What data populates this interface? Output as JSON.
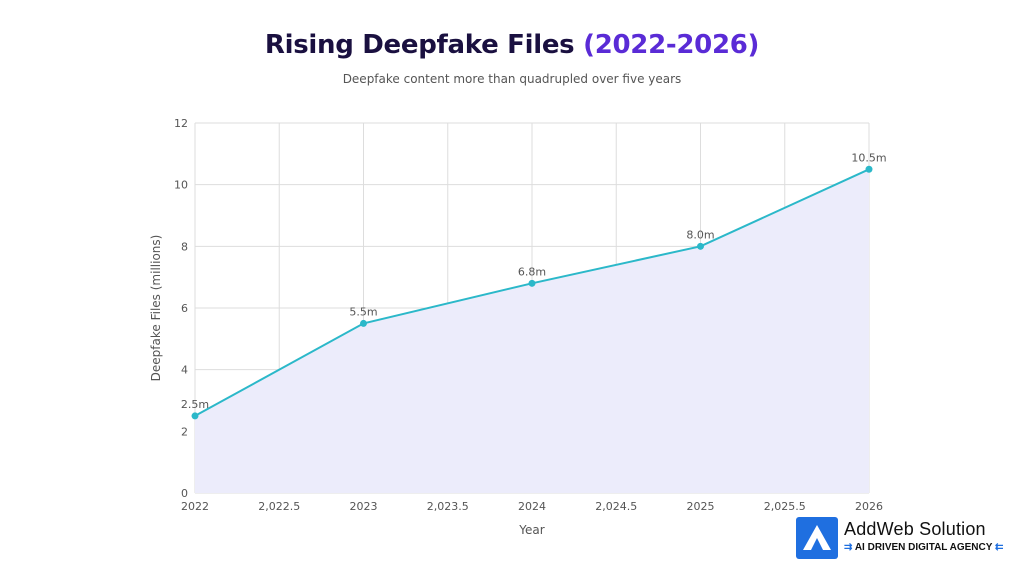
{
  "title_main": "Rising Deepfake Files",
  "title_accent": "(2022-2026)",
  "subtitle": "Deepfake content more than quadrupled over five years",
  "chart_data": {
    "type": "area",
    "title": "Rising Deepfake Files (2022-2026)",
    "subtitle": "Deepfake content more than quadrupled over five years",
    "xlabel": "Year",
    "ylabel": "Deepfake Files (millions)",
    "x": [
      2022,
      2023,
      2024,
      2025,
      2026
    ],
    "y": [
      2.5,
      5.5,
      6.8,
      8.0,
      10.5
    ],
    "point_labels": [
      "2.5m",
      "5.5m",
      "6.8m",
      "8.0m",
      "10.5m"
    ],
    "xlim": [
      2022,
      2026
    ],
    "ylim": [
      0,
      12
    ],
    "x_ticks": [
      2022,
      2022.5,
      2023,
      2023.5,
      2024,
      2024.5,
      2025,
      2025.5,
      2026
    ],
    "x_tick_labels": [
      "2022",
      "2,022.5",
      "2023",
      "2,023.5",
      "2024",
      "2,024.5",
      "2025",
      "2,025.5",
      "2026"
    ],
    "y_ticks": [
      0,
      2,
      4,
      6,
      8,
      10,
      12
    ],
    "y_tick_labels": [
      "0",
      "2",
      "4",
      "6",
      "8",
      "10",
      "12"
    ],
    "grid": true,
    "line_color": "#2bb8c9",
    "fill_color": "#ececfb"
  },
  "brand": {
    "name": "AddWeb Solution",
    "tagline": "AI DRIVEN DIGITAL AGENCY",
    "chevrons_left": "⇉",
    "chevrons_right": "⇇",
    "logo_icon": "chevron-up-icon",
    "logo_color": "#1f6fe0"
  }
}
